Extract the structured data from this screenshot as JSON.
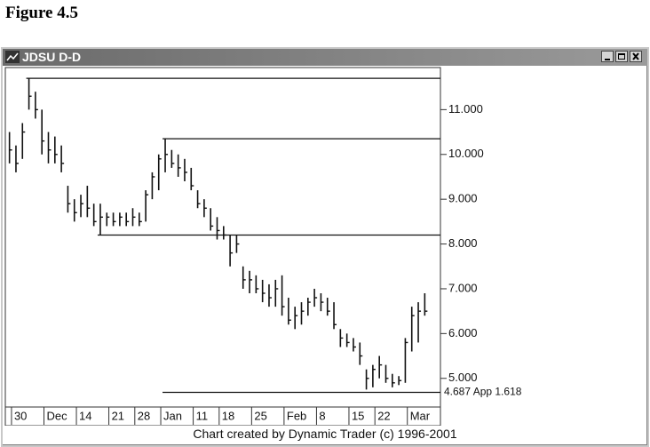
{
  "figure_label": "Figure 4.5",
  "window_title": "JDSU D-D",
  "footer": "Chart created by Dynamic Trader (c) 1996-2001",
  "chart_data": {
    "type": "ohlc",
    "color": "#111111",
    "categories": [
      null,
      "30",
      null,
      null,
      null,
      null,
      "Dec",
      null,
      null,
      null,
      null,
      "14",
      null,
      null,
      null,
      null,
      "21",
      null,
      null,
      null,
      "28",
      null,
      null,
      null,
      "Jan",
      null,
      null,
      null,
      null,
      "11",
      null,
      null,
      null,
      "18",
      null,
      null,
      null,
      null,
      "25",
      null,
      null,
      null,
      null,
      "Feb",
      null,
      null,
      null,
      null,
      "8",
      null,
      null,
      null,
      null,
      "15",
      null,
      null,
      null,
      "22",
      null,
      null,
      null,
      null,
      "Mar",
      null,
      null
    ],
    "high": [
      10.5,
      10.2,
      10.7,
      11.7,
      11.4,
      11.0,
      10.5,
      10.4,
      10.2,
      9.3,
      9.0,
      9.1,
      9.3,
      8.9,
      8.9,
      8.7,
      8.7,
      8.7,
      8.7,
      8.8,
      8.7,
      9.2,
      9.6,
      10.0,
      10.35,
      10.1,
      10.0,
      9.9,
      9.7,
      9.2,
      9.0,
      8.8,
      8.6,
      8.4,
      8.2,
      8.2,
      7.5,
      7.4,
      7.3,
      7.2,
      7.1,
      7.2,
      7.3,
      6.8,
      6.6,
      6.7,
      6.8,
      7.0,
      6.9,
      6.8,
      6.7,
      6.1,
      6.0,
      5.9,
      5.8,
      5.2,
      5.3,
      5.5,
      5.3,
      5.1,
      5.05,
      5.9,
      6.6,
      6.7,
      6.9
    ],
    "low": [
      9.8,
      9.6,
      9.9,
      11.0,
      10.8,
      10.0,
      9.8,
      9.8,
      9.6,
      8.7,
      8.5,
      8.6,
      8.6,
      8.4,
      8.2,
      8.4,
      8.4,
      8.4,
      8.4,
      8.4,
      8.4,
      8.5,
      9.0,
      9.2,
      9.6,
      9.7,
      9.5,
      9.4,
      9.2,
      8.8,
      8.6,
      8.3,
      8.1,
      8.1,
      7.5,
      7.8,
      7.0,
      6.9,
      6.9,
      6.7,
      6.6,
      6.6,
      6.4,
      6.2,
      6.1,
      6.2,
      6.4,
      6.6,
      6.5,
      6.4,
      6.1,
      5.7,
      5.7,
      5.6,
      5.3,
      4.75,
      4.8,
      5.0,
      4.9,
      4.8,
      4.85,
      4.9,
      5.6,
      5.8,
      6.4
    ],
    "close": [
      10.1,
      9.8,
      10.5,
      11.3,
      11.0,
      10.3,
      10.1,
      10.0,
      9.8,
      8.9,
      8.7,
      8.9,
      8.8,
      8.5,
      8.6,
      8.6,
      8.5,
      8.6,
      8.5,
      8.6,
      8.5,
      9.1,
      9.5,
      9.9,
      10.0,
      9.8,
      9.7,
      9.6,
      9.3,
      8.9,
      8.8,
      8.4,
      8.3,
      8.2,
      7.8,
      8.0,
      7.2,
      7.2,
      7.0,
      6.9,
      6.8,
      7.0,
      6.6,
      6.3,
      6.4,
      6.5,
      6.7,
      6.8,
      6.7,
      6.5,
      6.2,
      5.9,
      5.8,
      5.7,
      5.5,
      5.0,
      5.2,
      5.3,
      5.0,
      4.9,
      4.95,
      5.8,
      6.4,
      6.5,
      6.5
    ],
    "levels": [
      {
        "value": 11.7,
        "start": 3
      },
      {
        "value": 10.35,
        "start": 24
      },
      {
        "value": 8.2,
        "start": 14
      },
      {
        "value": 4.687,
        "start": 24,
        "label": "4.687 App 1.618"
      }
    ],
    "ylim": [
      4.36,
      11.94
    ],
    "yticks": [
      {
        "value": 5,
        "label": "5.000"
      },
      {
        "value": 6,
        "label": "6.000"
      },
      {
        "value": 7,
        "label": "7.000"
      },
      {
        "value": 8,
        "label": "8.000"
      },
      {
        "value": 9,
        "label": "9.000"
      },
      {
        "value": 10,
        "label": "10.000"
      },
      {
        "value": 11,
        "label": "11.000"
      }
    ]
  }
}
